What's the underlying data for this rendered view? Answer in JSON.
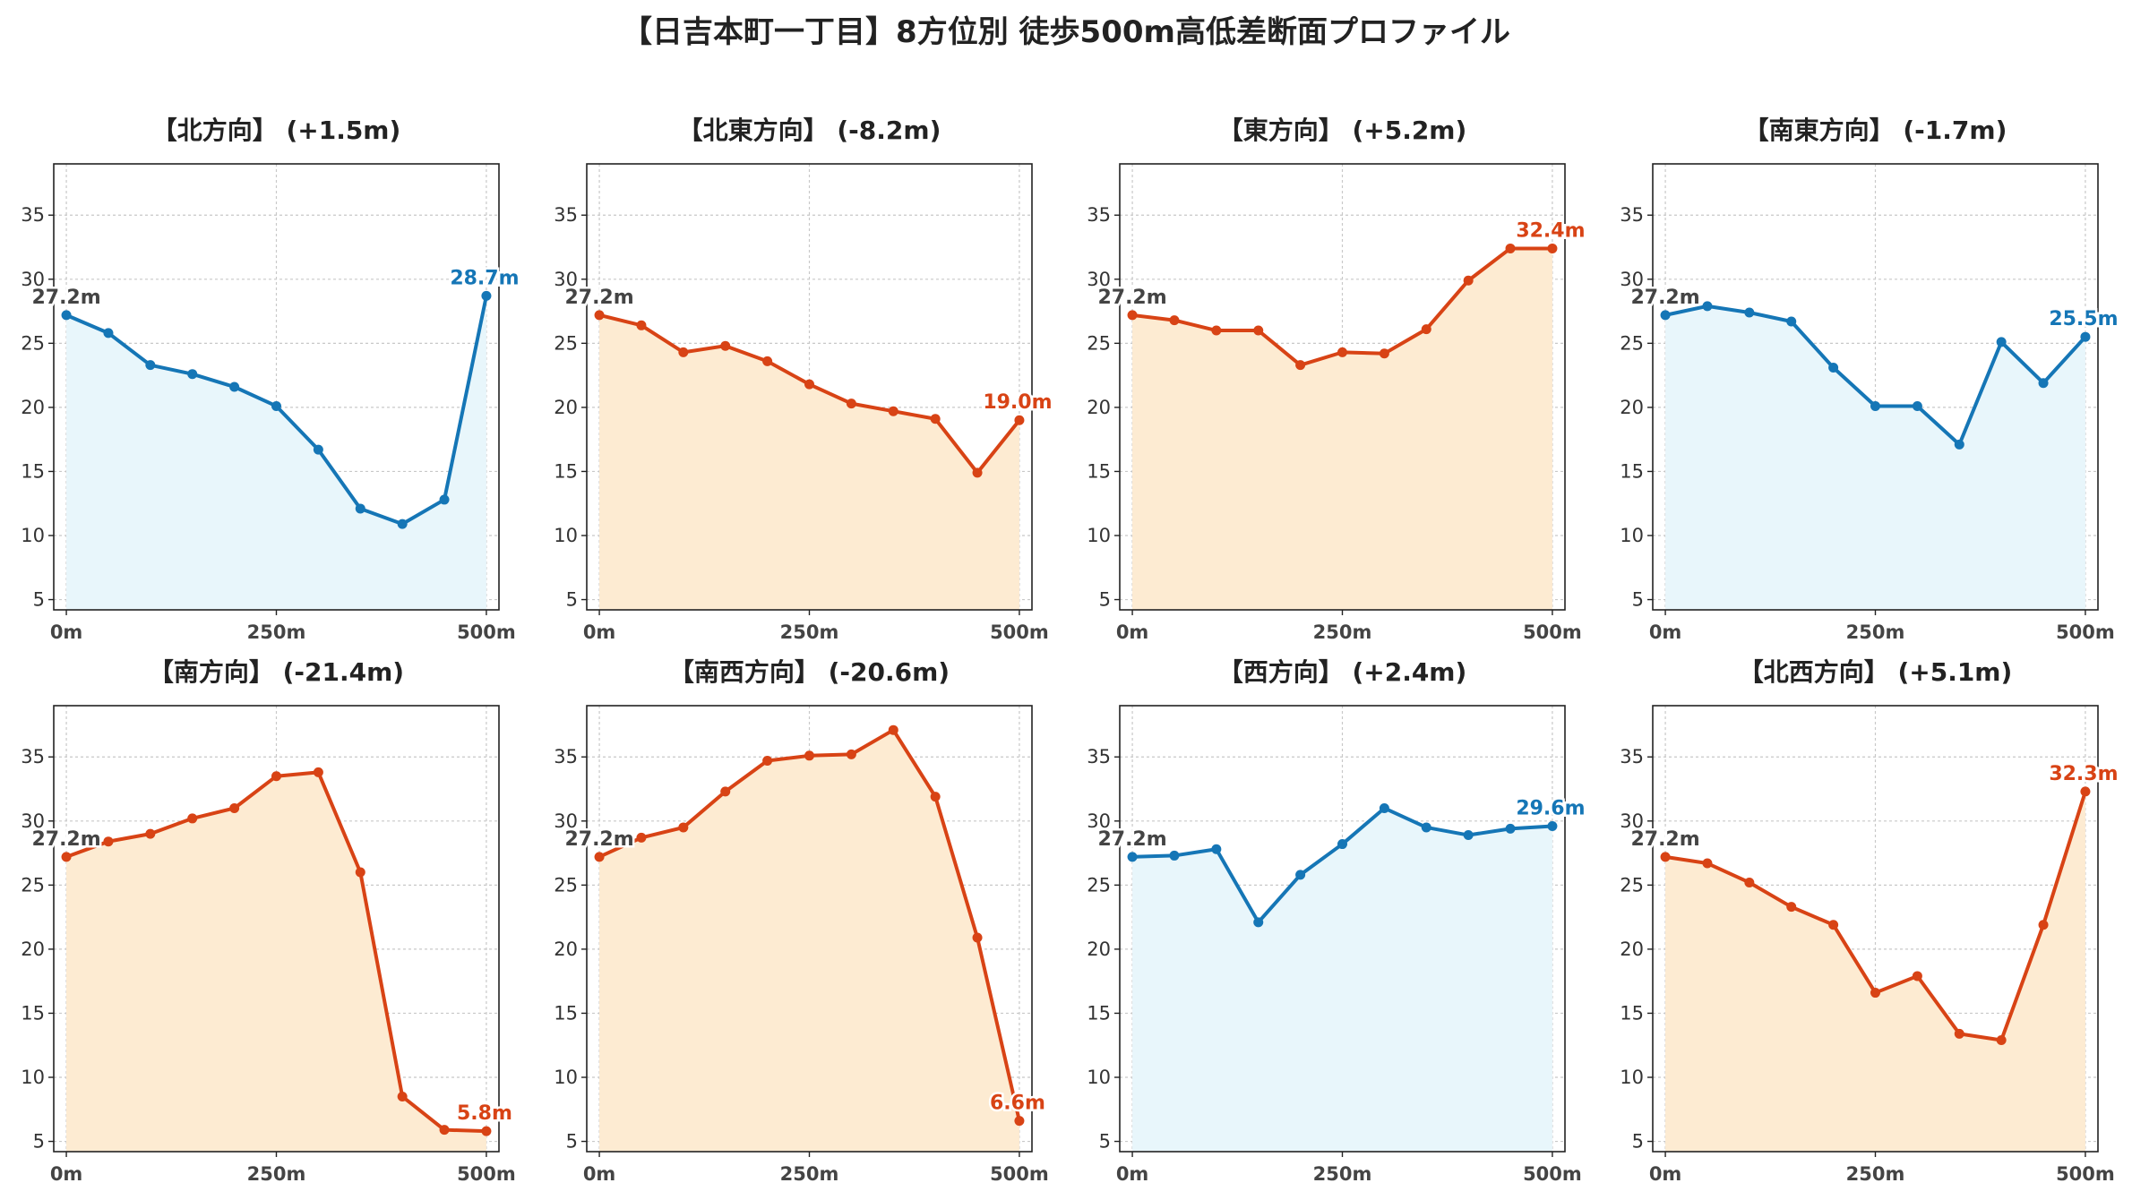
{
  "figure": {
    "title": "【日吉本町一丁目】8方位別 徒歩500m高低差断面プロファイル"
  },
  "colors": {
    "up_line": "#1576b6",
    "up_fill": "#e8f6fb",
    "down_line": "#d84315",
    "down_fill": "#fdebd2",
    "start_label": "#444444",
    "grid": "#c8c8c8",
    "axis": "#222222"
  },
  "chart_data": [
    {
      "type": "area",
      "title": "【北方向】 (+1.5m)",
      "trend": "up",
      "x": [
        0,
        50,
        100,
        150,
        200,
        250,
        300,
        350,
        400,
        450,
        500
      ],
      "values": [
        27.2,
        25.8,
        23.3,
        22.6,
        21.6,
        20.1,
        16.7,
        12.1,
        10.9,
        12.8,
        28.7
      ],
      "start_label": "27.2m",
      "end_label": "28.7m",
      "xticks": [
        0,
        250,
        500
      ],
      "xtick_labels": [
        "0m",
        "250m",
        "500m"
      ],
      "yticks": [
        5,
        10,
        15,
        20,
        25,
        30,
        35
      ],
      "ytick_labels": [
        "5",
        "10",
        "15",
        "20",
        "25",
        "30",
        "35"
      ],
      "xlim": [
        -15,
        515
      ],
      "ylim": [
        4.2,
        39
      ],
      "grid": true
    },
    {
      "type": "area",
      "title": "【北東方向】 (-8.2m)",
      "trend": "down",
      "x": [
        0,
        50,
        100,
        150,
        200,
        250,
        300,
        350,
        400,
        450,
        500
      ],
      "values": [
        27.2,
        26.4,
        24.3,
        24.8,
        23.6,
        21.8,
        20.3,
        19.7,
        19.1,
        14.9,
        19.0
      ],
      "start_label": "27.2m",
      "end_label": "19.0m",
      "xticks": [
        0,
        250,
        500
      ],
      "xtick_labels": [
        "0m",
        "250m",
        "500m"
      ],
      "yticks": [
        5,
        10,
        15,
        20,
        25,
        30,
        35
      ],
      "ytick_labels": [
        "5",
        "10",
        "15",
        "20",
        "25",
        "30",
        "35"
      ],
      "xlim": [
        -15,
        515
      ],
      "ylim": [
        4.2,
        39
      ],
      "grid": true
    },
    {
      "type": "area",
      "title": "【東方向】 (+5.2m)",
      "trend": "down",
      "x": [
        0,
        50,
        100,
        150,
        200,
        250,
        300,
        350,
        400,
        450,
        500
      ],
      "values": [
        27.2,
        26.8,
        26.0,
        26.0,
        23.3,
        24.3,
        24.2,
        26.1,
        29.9,
        32.4,
        32.4
      ],
      "start_label": "27.2m",
      "end_label": "32.4m",
      "xticks": [
        0,
        250,
        500
      ],
      "xtick_labels": [
        "0m",
        "250m",
        "500m"
      ],
      "yticks": [
        5,
        10,
        15,
        20,
        25,
        30,
        35
      ],
      "ytick_labels": [
        "5",
        "10",
        "15",
        "20",
        "25",
        "30",
        "35"
      ],
      "xlim": [
        -15,
        515
      ],
      "ylim": [
        4.2,
        39
      ],
      "grid": true
    },
    {
      "type": "area",
      "title": "【南東方向】 (-1.7m)",
      "trend": "up",
      "x": [
        0,
        50,
        100,
        150,
        200,
        250,
        300,
        350,
        400,
        450,
        500
      ],
      "values": [
        27.2,
        27.9,
        27.4,
        26.7,
        23.1,
        20.1,
        20.1,
        17.1,
        25.1,
        21.9,
        25.5
      ],
      "start_label": "27.2m",
      "end_label": "25.5m",
      "xticks": [
        0,
        250,
        500
      ],
      "xtick_labels": [
        "0m",
        "250m",
        "500m"
      ],
      "yticks": [
        5,
        10,
        15,
        20,
        25,
        30,
        35
      ],
      "ytick_labels": [
        "5",
        "10",
        "15",
        "20",
        "25",
        "30",
        "35"
      ],
      "xlim": [
        -15,
        515
      ],
      "ylim": [
        4.2,
        39
      ],
      "grid": true
    },
    {
      "type": "area",
      "title": "【南方向】 (-21.4m)",
      "trend": "down",
      "x": [
        0,
        50,
        100,
        150,
        200,
        250,
        300,
        350,
        400,
        450,
        500
      ],
      "values": [
        27.2,
        28.4,
        29.0,
        30.2,
        31.0,
        33.5,
        33.8,
        26.0,
        8.5,
        5.9,
        5.8
      ],
      "start_label": "27.2m",
      "end_label": "5.8m",
      "xticks": [
        0,
        250,
        500
      ],
      "xtick_labels": [
        "0m",
        "250m",
        "500m"
      ],
      "yticks": [
        5,
        10,
        15,
        20,
        25,
        30,
        35
      ],
      "ytick_labels": [
        "5",
        "10",
        "15",
        "20",
        "25",
        "30",
        "35"
      ],
      "xlim": [
        -15,
        515
      ],
      "ylim": [
        4.2,
        39
      ],
      "grid": true
    },
    {
      "type": "area",
      "title": "【南西方向】 (-20.6m)",
      "trend": "down",
      "x": [
        0,
        50,
        100,
        150,
        200,
        250,
        300,
        350,
        400,
        450,
        500
      ],
      "values": [
        27.2,
        28.7,
        29.5,
        32.3,
        34.7,
        35.1,
        35.2,
        37.1,
        31.9,
        20.9,
        6.6
      ],
      "start_label": "27.2m",
      "end_label": "6.6m",
      "xticks": [
        0,
        250,
        500
      ],
      "xtick_labels": [
        "0m",
        "250m",
        "500m"
      ],
      "yticks": [
        5,
        10,
        15,
        20,
        25,
        30,
        35
      ],
      "ytick_labels": [
        "5",
        "10",
        "15",
        "20",
        "25",
        "30",
        "35"
      ],
      "xlim": [
        -15,
        515
      ],
      "ylim": [
        4.2,
        39
      ],
      "grid": true
    },
    {
      "type": "area",
      "title": "【西方向】 (+2.4m)",
      "trend": "up",
      "x": [
        0,
        50,
        100,
        150,
        200,
        250,
        300,
        350,
        400,
        450,
        500
      ],
      "values": [
        27.2,
        27.3,
        27.8,
        22.1,
        25.8,
        28.2,
        31.0,
        29.5,
        28.9,
        29.4,
        29.6
      ],
      "start_label": "27.2m",
      "end_label": "29.6m",
      "xticks": [
        0,
        250,
        500
      ],
      "xtick_labels": [
        "0m",
        "250m",
        "500m"
      ],
      "yticks": [
        5,
        10,
        15,
        20,
        25,
        30,
        35
      ],
      "ytick_labels": [
        "5",
        "10",
        "15",
        "20",
        "25",
        "30",
        "35"
      ],
      "xlim": [
        -15,
        515
      ],
      "ylim": [
        4.2,
        39
      ],
      "grid": true
    },
    {
      "type": "area",
      "title": "【北西方向】 (+5.1m)",
      "trend": "down",
      "x": [
        0,
        50,
        100,
        150,
        200,
        250,
        300,
        350,
        400,
        450,
        500
      ],
      "values": [
        27.2,
        26.7,
        25.2,
        23.3,
        21.9,
        16.6,
        17.9,
        13.4,
        12.9,
        21.9,
        32.3
      ],
      "start_label": "27.2m",
      "end_label": "32.3m",
      "xticks": [
        0,
        250,
        500
      ],
      "xtick_labels": [
        "0m",
        "250m",
        "500m"
      ],
      "yticks": [
        5,
        10,
        15,
        20,
        25,
        30,
        35
      ],
      "ytick_labels": [
        "5",
        "10",
        "15",
        "20",
        "25",
        "30",
        "35"
      ],
      "xlim": [
        -15,
        515
      ],
      "ylim": [
        4.2,
        39
      ],
      "grid": true
    }
  ]
}
